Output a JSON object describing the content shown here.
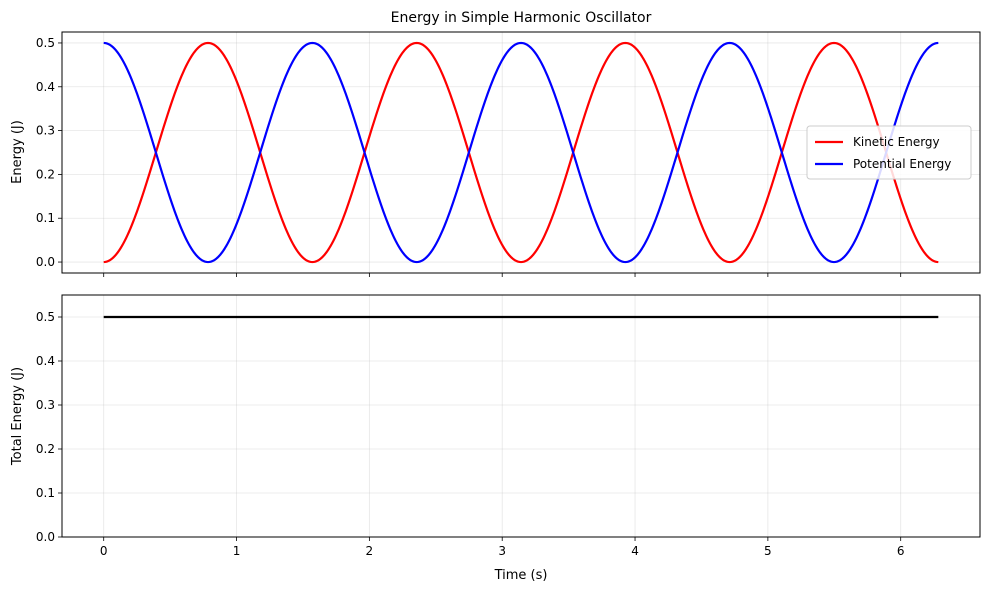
{
  "chart_data": [
    {
      "type": "line",
      "title": "Energy in Simple Harmonic Oscillator",
      "xlabel": "",
      "ylabel": "Energy (J)",
      "xlim": [
        -0.314,
        6.597
      ],
      "ylim": [
        -0.025,
        0.525
      ],
      "xticks": [
        "0",
        "1",
        "2",
        "3",
        "4",
        "5",
        "6"
      ],
      "yticks": [
        "0.0",
        "0.1",
        "0.2",
        "0.3",
        "0.4",
        "0.5"
      ],
      "grid": true,
      "legend_position": "center-right",
      "x_domain": [
        0,
        6.2832
      ],
      "series": [
        {
          "name": "Kinetic Energy",
          "color": "#ff0000",
          "formula": "0.5*sin(2t)^2",
          "points": [
            [
              0,
              0.0
            ],
            [
              0.3927,
              0.25
            ],
            [
              0.7854,
              0.5
            ],
            [
              1.1781,
              0.25
            ],
            [
              1.5708,
              0.0
            ],
            [
              1.9635,
              0.25
            ],
            [
              2.3562,
              0.5
            ],
            [
              2.7489,
              0.25
            ],
            [
              3.1416,
              0.0
            ],
            [
              3.5343,
              0.25
            ],
            [
              3.927,
              0.5
            ],
            [
              4.3197,
              0.25
            ],
            [
              4.7124,
              0.0
            ],
            [
              5.1051,
              0.25
            ],
            [
              5.4978,
              0.5
            ],
            [
              5.8905,
              0.25
            ],
            [
              6.2832,
              0.0
            ]
          ]
        },
        {
          "name": "Potential Energy",
          "color": "#0000ff",
          "formula": "0.5*cos(2t)^2",
          "points": [
            [
              0,
              0.5
            ],
            [
              0.3927,
              0.25
            ],
            [
              0.7854,
              0.0
            ],
            [
              1.1781,
              0.25
            ],
            [
              1.5708,
              0.5
            ],
            [
              1.9635,
              0.25
            ],
            [
              2.3562,
              0.0
            ],
            [
              2.7489,
              0.25
            ],
            [
              3.1416,
              0.5
            ],
            [
              3.5343,
              0.25
            ],
            [
              3.927,
              0.0
            ],
            [
              4.3197,
              0.25
            ],
            [
              4.7124,
              0.5
            ],
            [
              5.1051,
              0.25
            ],
            [
              5.4978,
              0.0
            ],
            [
              5.8905,
              0.25
            ],
            [
              6.2832,
              0.5
            ]
          ]
        }
      ]
    },
    {
      "type": "line",
      "title": "",
      "xlabel": "Time (s)",
      "ylabel": "Total Energy (J)",
      "xlim": [
        -0.314,
        6.597
      ],
      "ylim": [
        0.0,
        0.55
      ],
      "xticks": [
        "0",
        "1",
        "2",
        "3",
        "4",
        "5",
        "6"
      ],
      "yticks": [
        "0.0",
        "0.1",
        "0.2",
        "0.3",
        "0.4",
        "0.5"
      ],
      "grid": true,
      "series": [
        {
          "name": "",
          "color": "#000000",
          "points": [
            [
              0,
              0.5
            ],
            [
              6.2832,
              0.5
            ]
          ]
        }
      ]
    }
  ]
}
